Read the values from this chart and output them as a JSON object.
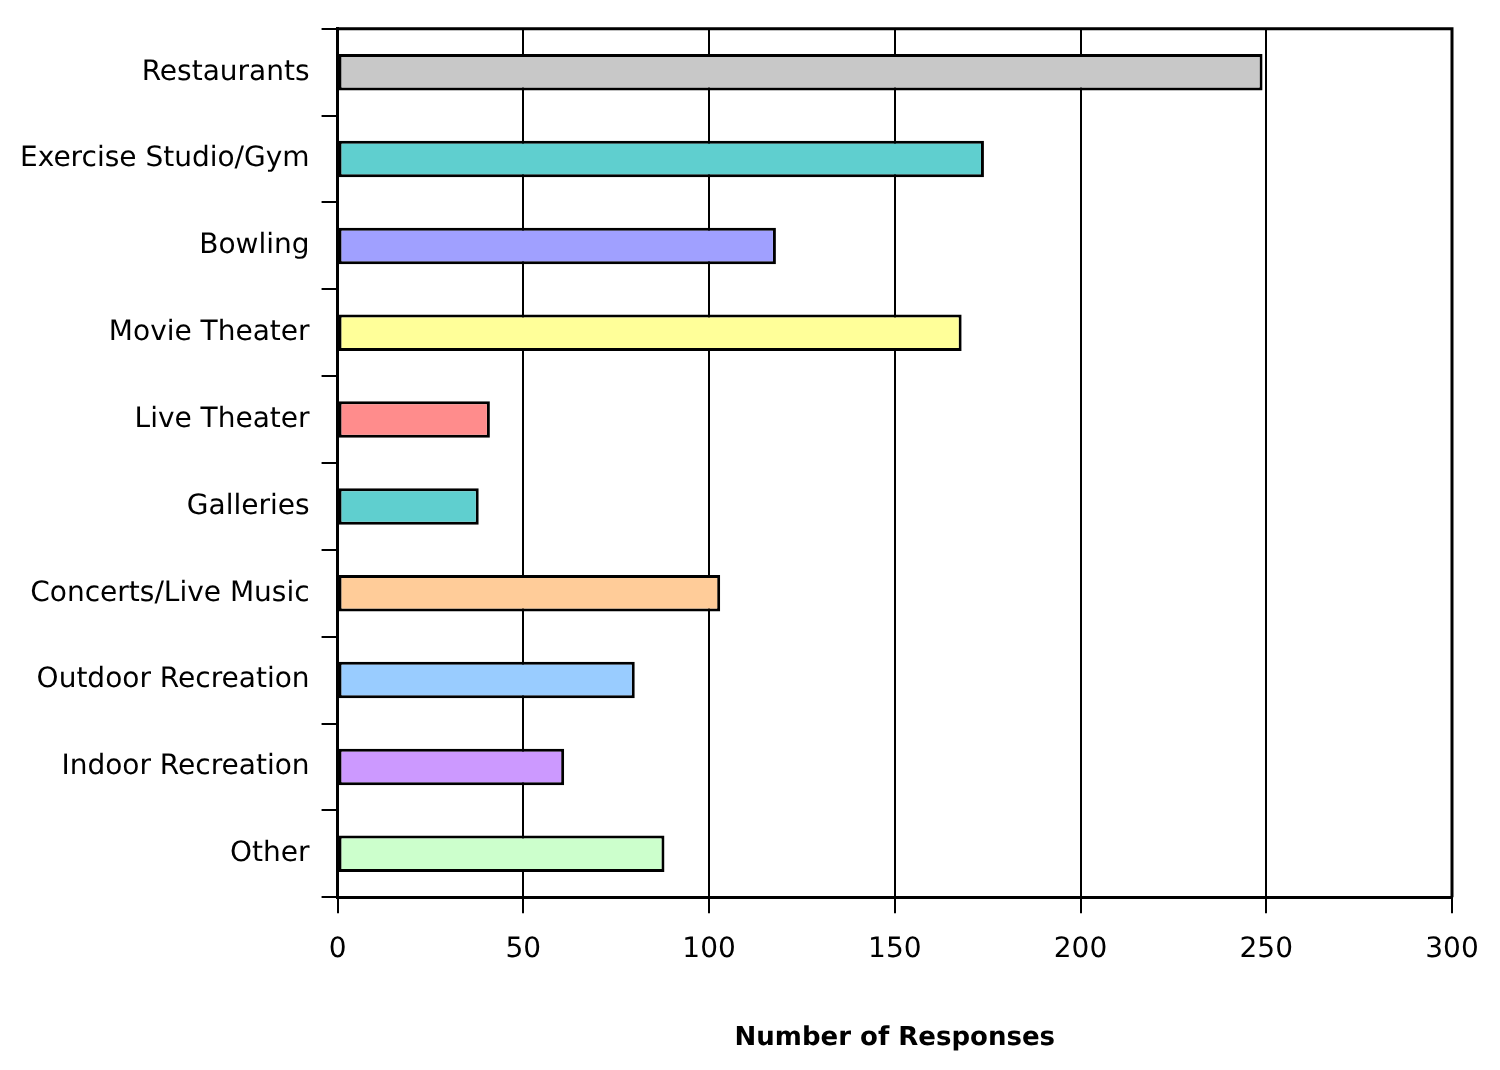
{
  "chart_data": {
    "type": "bar",
    "orientation": "horizontal",
    "xlabel": "Number of Responses",
    "categories": [
      "Restaurants",
      "Exercise Studio/Gym",
      "Bowling",
      "Movie Theater",
      "Live Theater",
      "Galleries",
      "Concerts/Live Music",
      "Outdoor Recreation",
      "Indoor Recreation",
      "Other"
    ],
    "values": [
      249,
      174,
      118,
      168,
      41,
      38,
      103,
      80,
      61,
      88
    ],
    "colors": [
      "#c8c8c8",
      "#5fcfcf",
      "#a0a0ff",
      "#ffff99",
      "#ff8c8c",
      "#5fcfcf",
      "#ffcc99",
      "#99ccff",
      "#cc99ff",
      "#ccffcc"
    ],
    "xlim": [
      0,
      300
    ],
    "xticks": [
      0,
      50,
      100,
      150,
      200,
      250,
      300
    ],
    "grid": "x",
    "legend": false
  }
}
